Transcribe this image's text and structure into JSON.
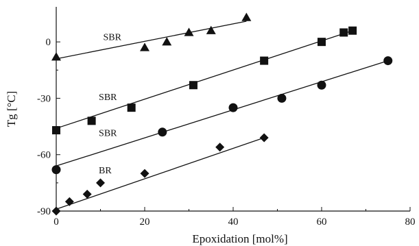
{
  "chart_data": {
    "type": "scatter",
    "title": "",
    "xlabel": "Epoxidation [mol%]",
    "ylabel": "Tg [°C]",
    "xlim": [
      0,
      80
    ],
    "ylim": [
      -90,
      15
    ],
    "xticks": [
      0,
      20,
      40,
      60,
      80
    ],
    "yticks": [
      -90,
      -60,
      -30,
      0
    ],
    "legend": "none",
    "grid": false,
    "series": [
      {
        "label": "SBR",
        "marker": "triangle",
        "points": [
          [
            0,
            -8
          ],
          [
            20,
            -3
          ],
          [
            25,
            0
          ],
          [
            30,
            5
          ],
          [
            35,
            6
          ],
          [
            43,
            13
          ]
        ],
        "fit": [
          [
            0,
            -9
          ],
          [
            43,
            11
          ]
        ],
        "label_at": [
          10,
          1
        ]
      },
      {
        "label": "SBR",
        "marker": "square",
        "points": [
          [
            0,
            -47
          ],
          [
            8,
            -42
          ],
          [
            17,
            -35
          ],
          [
            31,
            -23
          ],
          [
            47,
            -10
          ],
          [
            60,
            0
          ],
          [
            65,
            5
          ],
          [
            67,
            6
          ]
        ],
        "fit": [
          [
            0,
            -46
          ],
          [
            67,
            6
          ]
        ],
        "label_at": [
          9,
          -31
        ]
      },
      {
        "label": "SBR",
        "marker": "circle",
        "points": [
          [
            0,
            -68
          ],
          [
            24,
            -48
          ],
          [
            40,
            -35
          ],
          [
            51,
            -30
          ],
          [
            60,
            -23
          ],
          [
            75,
            -10
          ]
        ],
        "fit": [
          [
            0,
            -66
          ],
          [
            75,
            -10
          ]
        ],
        "label_at": [
          9,
          -50
        ]
      },
      {
        "label": "BR",
        "marker": "diamond",
        "points": [
          [
            0,
            -90
          ],
          [
            3,
            -85
          ],
          [
            7,
            -81
          ],
          [
            10,
            -75
          ],
          [
            20,
            -70
          ],
          [
            37,
            -56
          ],
          [
            47,
            -51
          ]
        ],
        "fit": [
          [
            0,
            -89
          ],
          [
            47,
            -51
          ]
        ],
        "label_at": [
          9,
          -70
        ]
      }
    ]
  }
}
